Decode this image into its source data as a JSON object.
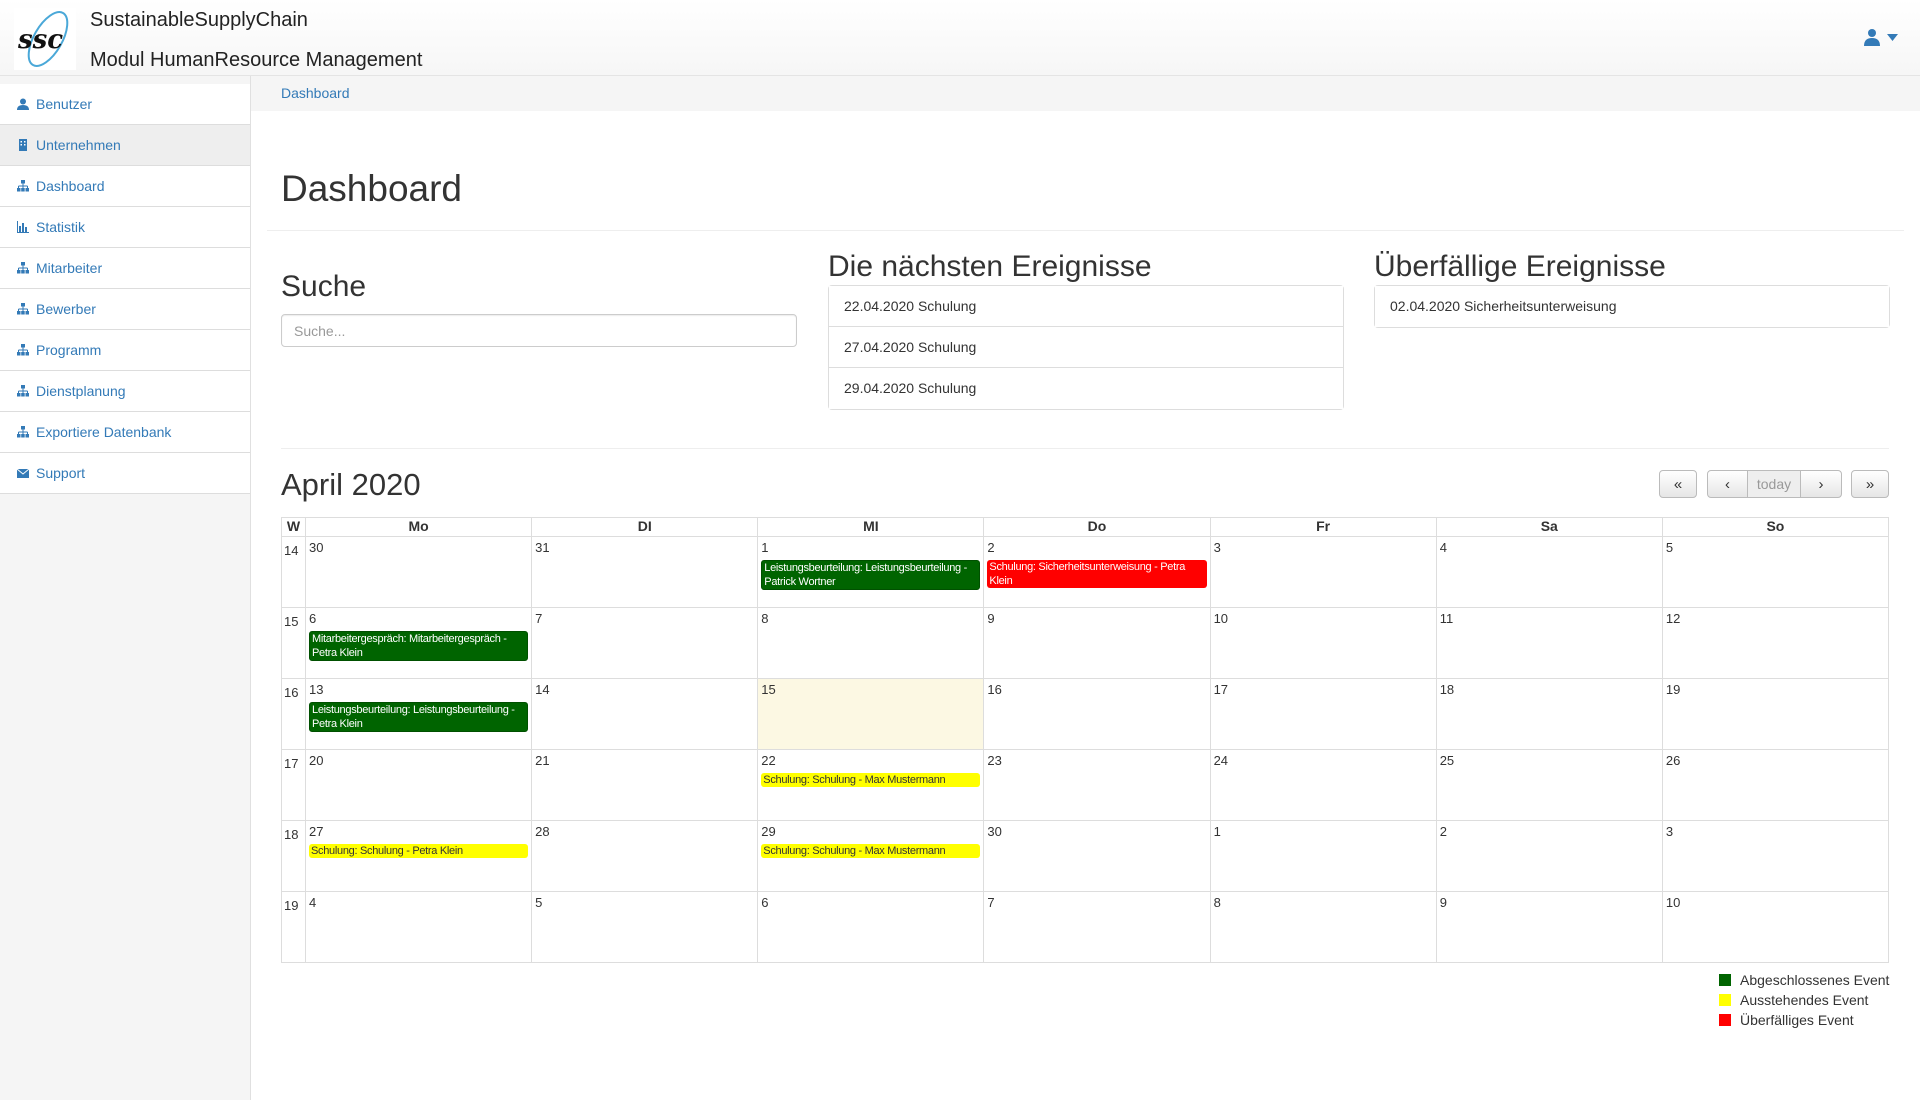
{
  "header": {
    "title": "SustainableSupplyChain",
    "subtitle": "Modul HumanResource Management",
    "logo_text": "ssc"
  },
  "sidebar": {
    "items": [
      {
        "label": "Benutzer",
        "icon": "user-icon"
      },
      {
        "label": "Unternehmen",
        "icon": "building-icon"
      },
      {
        "label": "Dashboard",
        "icon": "sitemap-icon"
      },
      {
        "label": "Statistik",
        "icon": "bar-chart-icon"
      },
      {
        "label": "Mitarbeiter",
        "icon": "sitemap-icon"
      },
      {
        "label": "Bewerber",
        "icon": "sitemap-icon"
      },
      {
        "label": "Programm",
        "icon": "sitemap-icon"
      },
      {
        "label": "Dienstplanung",
        "icon": "sitemap-icon"
      },
      {
        "label": "Exportiere Datenbank",
        "icon": "sitemap-icon"
      },
      {
        "label": "Support",
        "icon": "envelope-icon"
      }
    ]
  },
  "breadcrumb": "Dashboard",
  "page_title": "Dashboard",
  "search": {
    "heading": "Suche",
    "placeholder": "Suche..."
  },
  "upcoming": {
    "heading": "Die nächsten Ereignisse",
    "items": [
      "22.04.2020 Schulung",
      "27.04.2020 Schulung",
      "29.04.2020 Schulung"
    ]
  },
  "overdue": {
    "heading": "Überfällige Ereignisse",
    "items": [
      "02.04.2020 Sicherheitsunterweisung"
    ]
  },
  "calendar": {
    "month": "April 2020",
    "today_label": "today",
    "week_header": "W",
    "days": [
      "Mo",
      "DI",
      "MI",
      "Do",
      "Fr",
      "Sa",
      "So"
    ],
    "weeks": [
      {
        "no": "14",
        "dates": [
          "30",
          "31",
          "1",
          "2",
          "3",
          "4",
          "5"
        ]
      },
      {
        "no": "15",
        "dates": [
          "6",
          "7",
          "8",
          "9",
          "10",
          "11",
          "12"
        ]
      },
      {
        "no": "16",
        "dates": [
          "13",
          "14",
          "15",
          "16",
          "17",
          "18",
          "19"
        ]
      },
      {
        "no": "17",
        "dates": [
          "20",
          "21",
          "22",
          "23",
          "24",
          "25",
          "26"
        ]
      },
      {
        "no": "18",
        "dates": [
          "27",
          "28",
          "29",
          "30",
          "1",
          "2",
          "3"
        ]
      },
      {
        "no": "19",
        "dates": [
          "4",
          "5",
          "6",
          "7",
          "8",
          "9",
          "10"
        ]
      }
    ],
    "events": [
      {
        "week": 0,
        "day": 2,
        "status": "g",
        "text": "Leistungsbeurteilung: Leistungsbeurteilung - Patrick Wortner"
      },
      {
        "week": 0,
        "day": 3,
        "status": "r",
        "text": "Schulung: Sicherheitsunterweisung - Petra Klein"
      },
      {
        "week": 1,
        "day": 0,
        "status": "g",
        "text": "Mitarbeitergespräch: Mitarbeitergespräch - Petra Klein"
      },
      {
        "week": 2,
        "day": 0,
        "status": "g",
        "text": "Leistungsbeurteilung: Leistungsbeurteilung - Petra Klein"
      },
      {
        "week": 3,
        "day": 2,
        "status": "y",
        "text": "Schulung: Schulung - Max Mustermann"
      },
      {
        "week": 4,
        "day": 0,
        "status": "y",
        "text": "Schulung: Schulung - Petra Klein"
      },
      {
        "week": 4,
        "day": 2,
        "status": "y",
        "text": "Schulung: Schulung - Max Mustermann"
      }
    ],
    "today": {
      "week": 2,
      "day": 2
    }
  },
  "legend": [
    {
      "label": "Abgeschlossenes Event",
      "color": "#006400"
    },
    {
      "label": "Ausstehendes Event",
      "color": "#ffff00"
    },
    {
      "label": "Überfälliges Event",
      "color": "#ff0000"
    }
  ]
}
